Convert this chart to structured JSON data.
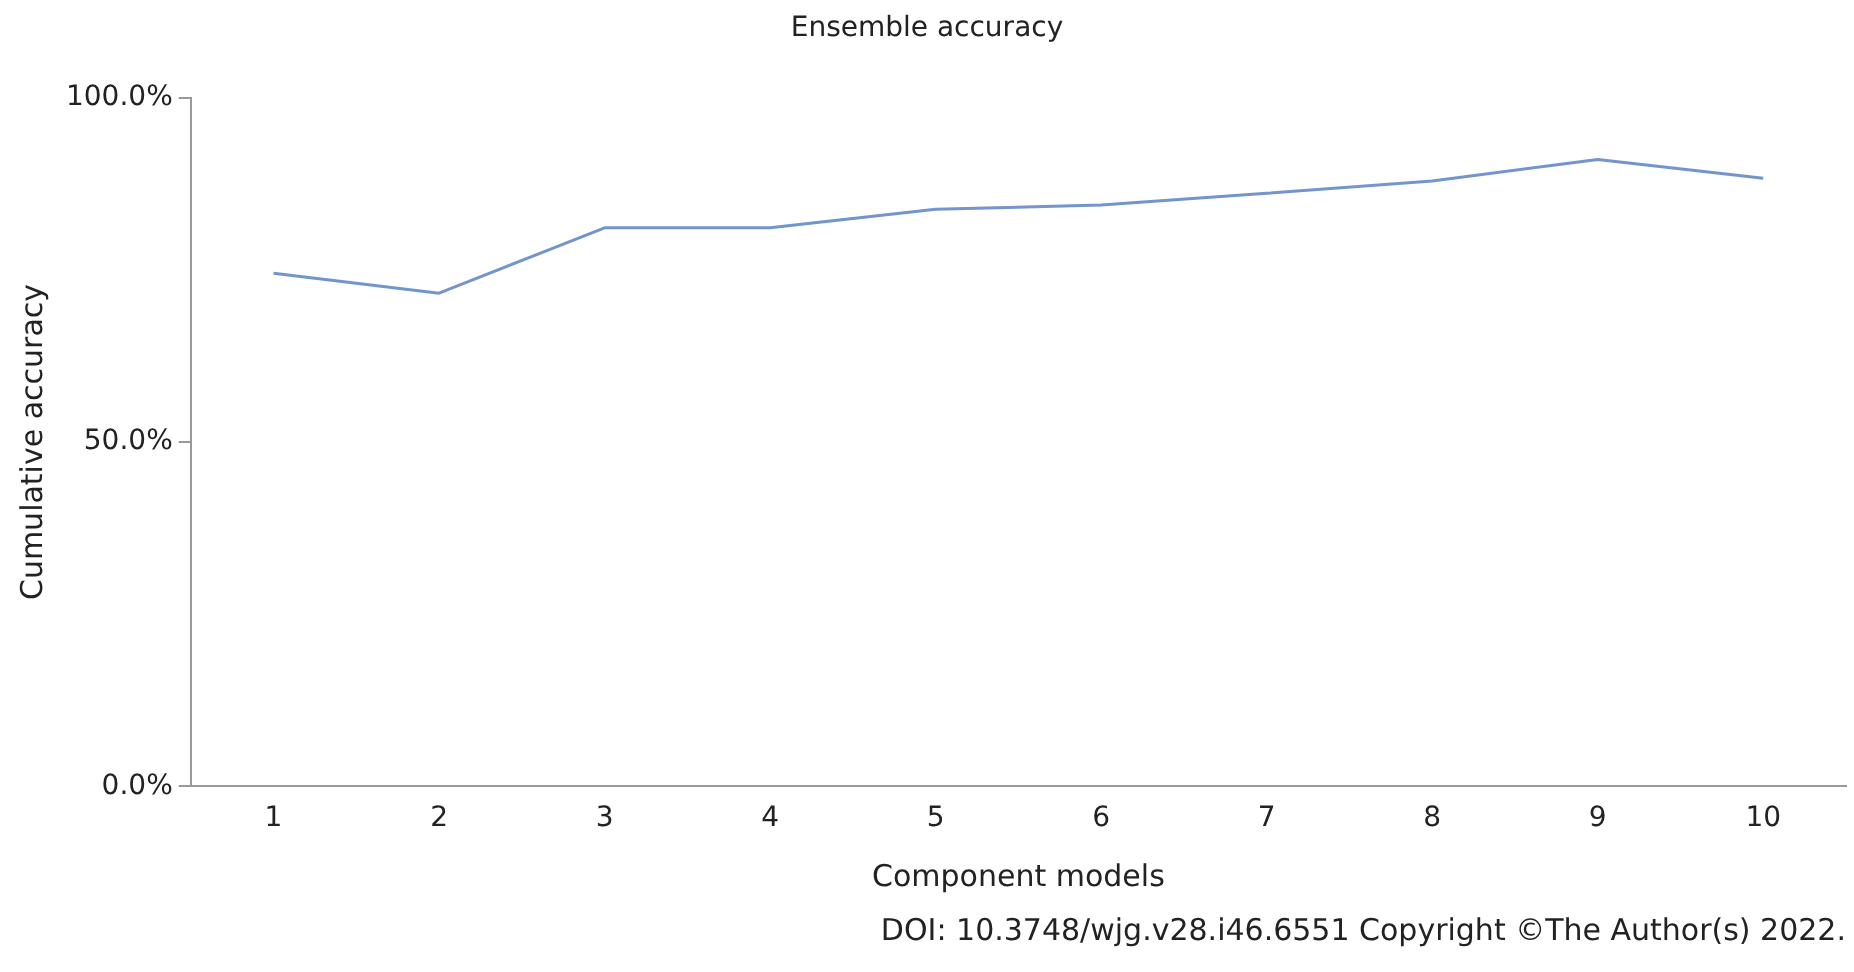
{
  "chart_data": {
    "type": "line",
    "title": "Ensemble accuracy",
    "xlabel": "Component models",
    "ylabel": "Cumulative accuracy",
    "categories": [
      "1",
      "2",
      "3",
      "4",
      "5",
      "6",
      "7",
      "8",
      "9",
      "10"
    ],
    "series": [
      {
        "color": "#7394cc",
        "values": [
          74.5,
          71.6,
          81.1,
          81.1,
          83.8,
          84.4,
          86.1,
          87.9,
          91.0,
          88.3
        ]
      }
    ],
    "ylim": [
      0,
      100
    ],
    "yticks": [
      {
        "value": 0,
        "label": "0.0%"
      },
      {
        "value": 50,
        "label": "50.0%"
      },
      {
        "value": 100,
        "label": "100.0%"
      }
    ],
    "grid": false,
    "legend": false,
    "marker": "none",
    "line_style": "solid",
    "annotations": [
      "DOI: 10.3748/wjg.v28.i46.6551  Copyright ©The Author(s) 2022."
    ]
  }
}
